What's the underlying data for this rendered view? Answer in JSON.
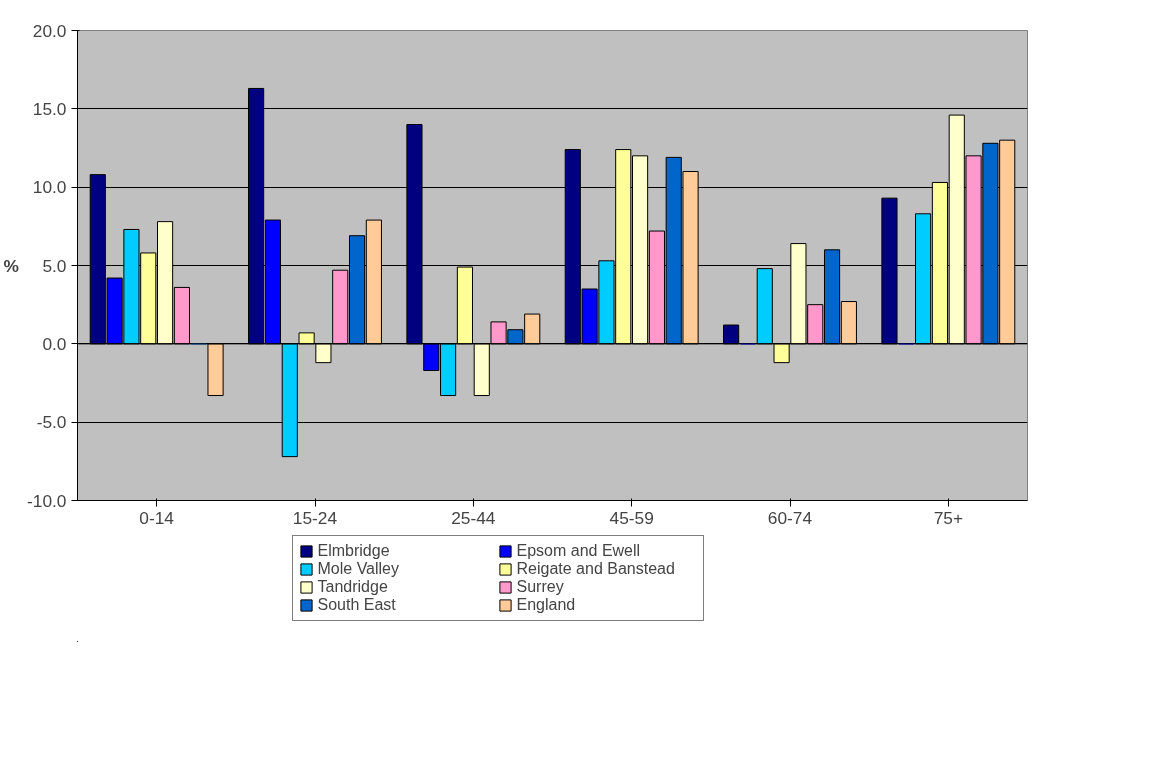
{
  "chart_data": {
    "type": "bar",
    "ylabel": "%",
    "categories": [
      "0-14",
      "15-24",
      "25-44",
      "45-59",
      "60-74",
      "75+"
    ],
    "series": [
      {
        "name": "Elmbridge",
        "color": "#000080",
        "values": [
          10.8,
          16.3,
          14.0,
          12.4,
          1.2,
          9.3
        ]
      },
      {
        "name": "Epsom and Ewell",
        "color": "#0000ff",
        "values": [
          4.2,
          7.9,
          -1.7,
          3.5,
          0.0,
          0.0
        ]
      },
      {
        "name": "Mole Valley",
        "color": "#00ccff",
        "values": [
          7.3,
          -7.2,
          -3.3,
          5.3,
          4.8,
          8.3
        ]
      },
      {
        "name": "Reigate and Banstead",
        "color": "#ffff99",
        "values": [
          5.8,
          0.7,
          4.9,
          12.4,
          -1.2,
          10.3
        ]
      },
      {
        "name": "Tandridge",
        "color": "#ffffcc",
        "values": [
          7.8,
          -1.2,
          -3.3,
          12.0,
          6.4,
          14.6
        ]
      },
      {
        "name": "Surrey",
        "color": "#ff99cc",
        "values": [
          3.6,
          4.7,
          1.4,
          7.2,
          2.5,
          12.0
        ]
      },
      {
        "name": "South East",
        "color": "#0066cc",
        "values": [
          0.0,
          6.9,
          0.9,
          11.9,
          6.0,
          12.8
        ]
      },
      {
        "name": "England",
        "color": "#ffcc99",
        "values": [
          -3.3,
          7.9,
          1.9,
          11.0,
          2.7,
          13.0
        ]
      }
    ],
    "ylim": [
      -10,
      20
    ],
    "yticks": [
      {
        "value": -10,
        "label": "-10.0"
      },
      {
        "value": -5,
        "label": "-5.0"
      },
      {
        "value": 0,
        "label": "0.0"
      },
      {
        "value": 5,
        "label": "5.0"
      },
      {
        "value": 10,
        "label": "10.0"
      },
      {
        "value": 15,
        "label": "15.0"
      },
      {
        "value": 20,
        "label": "20.0"
      }
    ],
    "grid": "y",
    "legend": "bottom"
  }
}
